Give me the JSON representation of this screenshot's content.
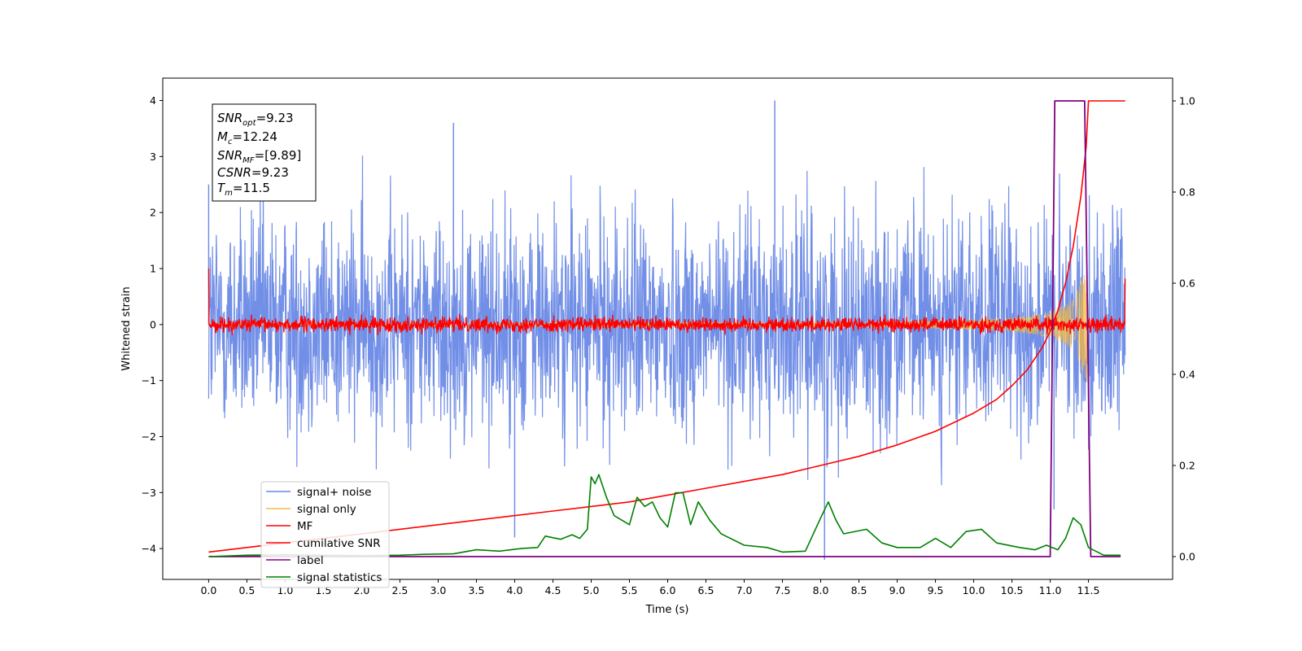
{
  "chart_data": {
    "type": "line",
    "title": "",
    "xlabel": "Time (s)",
    "ylabel": "Whitened strain",
    "xlim": [
      -0.6,
      12.6
    ],
    "ylim": [
      -4.55,
      4.4
    ],
    "y2lim": [
      -0.05,
      1.05
    ],
    "grid": false,
    "legend_position": "lower-left",
    "x_ticks": [
      "0.0",
      "0.5",
      "1.0",
      "1.5",
      "2.0",
      "2.5",
      "3.0",
      "3.5",
      "4.0",
      "4.5",
      "5.0",
      "5.5",
      "6.0",
      "6.5",
      "7.0",
      "7.5",
      "8.0",
      "8.5",
      "9.0",
      "9.5",
      "10.0",
      "10.5",
      "11.0",
      "11.5"
    ],
    "y_ticks": [
      "−4",
      "−3",
      "−2",
      "−1",
      "0",
      "1",
      "2",
      "3",
      "4"
    ],
    "y2_ticks": [
      "0.0",
      "0.2",
      "0.4",
      "0.6",
      "0.8",
      "1.0"
    ],
    "info_box": {
      "line1": {
        "base": "SNR",
        "sub": "opt",
        "value": "=9.23"
      },
      "line2": {
        "base": "M",
        "sub": "c",
        "value": "=12.24"
      },
      "line3": {
        "base": "SNR",
        "sub": "MF",
        "value": "=[9.89]"
      },
      "line4": {
        "base": "CSNR",
        "sub": "",
        "value": "=9.23"
      },
      "line5": {
        "base": "T",
        "sub": "m",
        "value": "=11.5"
      }
    },
    "series": [
      {
        "name": "signal+ noise",
        "axis": "left",
        "color": "#6a89e6",
        "description_kind": "noise_envelope",
        "t_range": [
          0,
          11.98
        ],
        "typical_amplitude": 1.6,
        "peaks": [
          [
            0.0,
            2.5
          ],
          [
            3.2,
            3.6
          ],
          [
            4.0,
            -3.8
          ],
          [
            7.4,
            4.0
          ],
          [
            8.05,
            -4.2
          ],
          [
            11.05,
            -3.3
          ]
        ]
      },
      {
        "name": "signal only",
        "axis": "left",
        "color": "#f5b942",
        "description_kind": "chirp",
        "t_range": [
          0,
          11.5
        ],
        "amplitude_points": [
          [
            0,
            0.02
          ],
          [
            9.0,
            0.05
          ],
          [
            10.5,
            0.12
          ],
          [
            11.0,
            0.22
          ],
          [
            11.3,
            0.45
          ],
          [
            11.5,
            1.1
          ]
        ]
      },
      {
        "name": "MF",
        "axis": "left",
        "color": "#ff0000",
        "description_kind": "noise_band",
        "t_range": [
          0,
          11.98
        ],
        "typical_amplitude": 0.12,
        "edge_values": [
          1.0,
          0.82
        ]
      },
      {
        "name": "cumilative SNR",
        "axis": "right",
        "color": "#ff0000",
        "points": [
          [
            0.0,
            0.01
          ],
          [
            0.5,
            0.02
          ],
          [
            1.0,
            0.03
          ],
          [
            1.5,
            0.04
          ],
          [
            2.0,
            0.05
          ],
          [
            2.5,
            0.06
          ],
          [
            3.0,
            0.07
          ],
          [
            3.5,
            0.08
          ],
          [
            4.0,
            0.09
          ],
          [
            4.5,
            0.1
          ],
          [
            5.0,
            0.11
          ],
          [
            5.5,
            0.12
          ],
          [
            6.0,
            0.135
          ],
          [
            6.5,
            0.15
          ],
          [
            7.0,
            0.165
          ],
          [
            7.5,
            0.18
          ],
          [
            8.0,
            0.2
          ],
          [
            8.5,
            0.22
          ],
          [
            9.0,
            0.245
          ],
          [
            9.5,
            0.275
          ],
          [
            10.0,
            0.315
          ],
          [
            10.3,
            0.345
          ],
          [
            10.5,
            0.375
          ],
          [
            10.7,
            0.41
          ],
          [
            10.9,
            0.46
          ],
          [
            11.0,
            0.495
          ],
          [
            11.1,
            0.54
          ],
          [
            11.2,
            0.6
          ],
          [
            11.3,
            0.68
          ],
          [
            11.4,
            0.79
          ],
          [
            11.47,
            0.9
          ],
          [
            11.5,
            1.0
          ],
          [
            11.98,
            1.0
          ]
        ]
      },
      {
        "name": "label",
        "axis": "right",
        "color": "#800080",
        "points": [
          [
            0.0,
            0.0
          ],
          [
            11.0,
            0.0
          ],
          [
            11.06,
            1.0
          ],
          [
            11.45,
            1.0
          ],
          [
            11.53,
            0.0
          ],
          [
            11.92,
            0.0
          ]
        ]
      },
      {
        "name": "signal statistics",
        "axis": "right",
        "color": "#008000",
        "points": [
          [
            0.0,
            0.0
          ],
          [
            0.5,
            0.003
          ],
          [
            1.0,
            0.004
          ],
          [
            1.5,
            0.003
          ],
          [
            2.0,
            0.002
          ],
          [
            2.5,
            0.003
          ],
          [
            2.8,
            0.005
          ],
          [
            3.2,
            0.006
          ],
          [
            3.5,
            0.015
          ],
          [
            3.8,
            0.012
          ],
          [
            4.1,
            0.018
          ],
          [
            4.3,
            0.02
          ],
          [
            4.4,
            0.045
          ],
          [
            4.6,
            0.038
          ],
          [
            4.75,
            0.048
          ],
          [
            4.85,
            0.04
          ],
          [
            4.95,
            0.06
          ],
          [
            5.0,
            0.175
          ],
          [
            5.05,
            0.16
          ],
          [
            5.1,
            0.18
          ],
          [
            5.2,
            0.13
          ],
          [
            5.3,
            0.09
          ],
          [
            5.5,
            0.07
          ],
          [
            5.6,
            0.13
          ],
          [
            5.7,
            0.11
          ],
          [
            5.8,
            0.12
          ],
          [
            5.9,
            0.085
          ],
          [
            6.0,
            0.065
          ],
          [
            6.1,
            0.14
          ],
          [
            6.2,
            0.14
          ],
          [
            6.3,
            0.07
          ],
          [
            6.4,
            0.12
          ],
          [
            6.55,
            0.08
          ],
          [
            6.7,
            0.05
          ],
          [
            7.0,
            0.025
          ],
          [
            7.3,
            0.02
          ],
          [
            7.5,
            0.01
          ],
          [
            7.8,
            0.012
          ],
          [
            8.0,
            0.085
          ],
          [
            8.1,
            0.12
          ],
          [
            8.2,
            0.08
          ],
          [
            8.3,
            0.05
          ],
          [
            8.6,
            0.06
          ],
          [
            8.8,
            0.03
          ],
          [
            9.0,
            0.02
          ],
          [
            9.3,
            0.02
          ],
          [
            9.5,
            0.04
          ],
          [
            9.7,
            0.02
          ],
          [
            9.9,
            0.055
          ],
          [
            10.1,
            0.06
          ],
          [
            10.3,
            0.03
          ],
          [
            10.6,
            0.02
          ],
          [
            10.8,
            0.015
          ],
          [
            10.95,
            0.025
          ],
          [
            11.1,
            0.015
          ],
          [
            11.2,
            0.04
          ],
          [
            11.3,
            0.085
          ],
          [
            11.4,
            0.07
          ],
          [
            11.5,
            0.02
          ],
          [
            11.7,
            0.003
          ],
          [
            11.92,
            0.003
          ]
        ]
      }
    ]
  }
}
